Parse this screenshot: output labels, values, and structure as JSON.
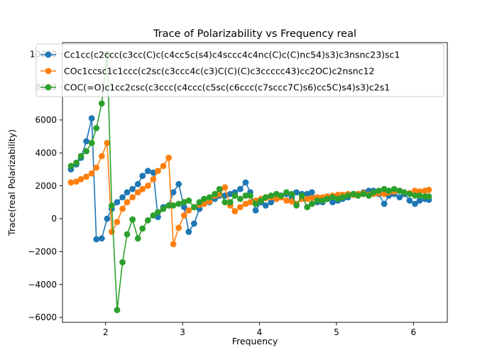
{
  "chart_data": {
    "type": "line",
    "title": "Trace of Polarizability vs Frequency real",
    "xlabel": "Frequency",
    "ylabel": "Trace(real Polarizability)",
    "xlim": [
      1.44,
      6.44
    ],
    "ylim": [
      -6300,
      10700
    ],
    "xticks": [
      2,
      3,
      4,
      5,
      6
    ],
    "yticks": [
      -6000,
      -4000,
      -2000,
      0,
      2000,
      4000,
      6000,
      8000,
      10000
    ],
    "grid": false,
    "legend_position": "top-left",
    "series": [
      {
        "name": "Cc1cc(c2ccc(c3cc(C)c(c4cc5c(s4)c4sccc4c4nc(C)c(C)nc54)s3)c3nsnc23)sc1",
        "color": "#1f77b4",
        "x": [
          1.55,
          1.62,
          1.68,
          1.75,
          1.82,
          1.88,
          1.95,
          2.02,
          2.08,
          2.15,
          2.22,
          2.28,
          2.35,
          2.42,
          2.48,
          2.55,
          2.62,
          2.68,
          2.75,
          2.82,
          2.88,
          2.95,
          3.02,
          3.08,
          3.15,
          3.22,
          3.28,
          3.35,
          3.42,
          3.48,
          3.55,
          3.62,
          3.68,
          3.75,
          3.82,
          3.88,
          3.95,
          4.02,
          4.08,
          4.15,
          4.22,
          4.28,
          4.35,
          4.42,
          4.48,
          4.55,
          4.62,
          4.68,
          4.75,
          4.82,
          4.88,
          4.95,
          5.02,
          5.08,
          5.15,
          5.22,
          5.28,
          5.35,
          5.42,
          5.48,
          5.55,
          5.62,
          5.68,
          5.75,
          5.82,
          5.88,
          5.95,
          6.02,
          6.08,
          6.15,
          6.2
        ],
        "y": [
          3000,
          3300,
          3700,
          4700,
          6100,
          -1250,
          -1200,
          0,
          600,
          1000,
          1300,
          1600,
          1800,
          2100,
          2600,
          2900,
          2800,
          100,
          700,
          800,
          1600,
          2100,
          700,
          -800,
          -300,
          600,
          900,
          1000,
          1200,
          1400,
          1400,
          1500,
          1600,
          1800,
          2200,
          1600,
          500,
          1000,
          800,
          1000,
          1200,
          1400,
          1500,
          1300,
          1600,
          1500,
          1500,
          1600,
          1000,
          1000,
          1200,
          1000,
          1100,
          1200,
          1300,
          1500,
          1500,
          1600,
          1700,
          1700,
          1500,
          900,
          1400,
          1500,
          1300,
          1500,
          1100,
          900,
          1100,
          1200,
          1150
        ]
      },
      {
        "name": "COc1ccsc1c1ccc(c2sc(c3ccc4c(c3)C(C)(C)c3ccccc43)cc2OC)c2nsnc12",
        "color": "#ff7f0e",
        "x": [
          1.55,
          1.62,
          1.68,
          1.75,
          1.82,
          1.88,
          1.95,
          2.02,
          2.08,
          2.15,
          2.22,
          2.28,
          2.35,
          2.42,
          2.48,
          2.55,
          2.62,
          2.68,
          2.75,
          2.82,
          2.88,
          2.95,
          3.02,
          3.08,
          3.15,
          3.22,
          3.28,
          3.35,
          3.42,
          3.48,
          3.55,
          3.62,
          3.68,
          3.75,
          3.82,
          3.88,
          3.95,
          4.02,
          4.08,
          4.15,
          4.22,
          4.28,
          4.35,
          4.42,
          4.48,
          4.55,
          4.62,
          4.68,
          4.75,
          4.82,
          4.88,
          4.95,
          5.02,
          5.08,
          5.15,
          5.22,
          5.28,
          5.35,
          5.42,
          5.48,
          5.55,
          5.62,
          5.68,
          5.75,
          5.82,
          5.88,
          5.95,
          6.02,
          6.08,
          6.15,
          6.2
        ],
        "y": [
          2200,
          2250,
          2400,
          2550,
          2750,
          3100,
          3800,
          4600,
          -800,
          -200,
          600,
          1000,
          1300,
          1600,
          1800,
          2000,
          2400,
          2900,
          3200,
          3700,
          -1550,
          -550,
          200,
          500,
          700,
          850,
          900,
          1050,
          1400,
          1500,
          1900,
          800,
          450,
          700,
          900,
          1000,
          1100,
          1200,
          1250,
          1300,
          1200,
          1300,
          1100,
          1050,
          900,
          1200,
          1200,
          1250,
          1300,
          1300,
          1350,
          1400,
          1450,
          1450,
          1500,
          1450,
          1500,
          1550,
          1450,
          1500,
          1550,
          1500,
          1600,
          1650,
          1700,
          1600,
          1550,
          1700,
          1650,
          1700,
          1750
        ]
      },
      {
        "name": "COC(=O)c1cc2csc(c3ccc(c4ccc(c5sc(c6ccc(c7sccc7C)s6)cc5C)s4)s3)c2s1",
        "color": "#2ca02c",
        "x": [
          1.55,
          1.62,
          1.68,
          1.75,
          1.82,
          1.88,
          1.95,
          2.02,
          2.08,
          2.15,
          2.22,
          2.28,
          2.35,
          2.42,
          2.48,
          2.55,
          2.62,
          2.68,
          2.75,
          2.82,
          2.88,
          2.95,
          3.02,
          3.08,
          3.15,
          3.22,
          3.28,
          3.35,
          3.42,
          3.48,
          3.55,
          3.62,
          3.68,
          3.75,
          3.82,
          3.88,
          3.95,
          4.02,
          4.08,
          4.15,
          4.22,
          4.28,
          4.35,
          4.42,
          4.48,
          4.55,
          4.62,
          4.68,
          4.75,
          4.82,
          4.88,
          4.95,
          5.02,
          5.08,
          5.15,
          5.22,
          5.28,
          5.35,
          5.42,
          5.48,
          5.55,
          5.62,
          5.68,
          5.75,
          5.82,
          5.88,
          5.95,
          6.02,
          6.08,
          6.15,
          6.2
        ],
        "y": [
          3200,
          3400,
          3800,
          4100,
          4600,
          5500,
          7000,
          10000,
          800,
          -5550,
          -2650,
          -950,
          -50,
          -1200,
          -600,
          -100,
          200,
          400,
          600,
          800,
          800,
          900,
          1000,
          1100,
          700,
          1000,
          1200,
          1300,
          1500,
          1800,
          1000,
          1000,
          1400,
          1200,
          1400,
          1400,
          900,
          1100,
          1300,
          1400,
          1500,
          1400,
          1600,
          1500,
          800,
          1400,
          700,
          900,
          1100,
          1100,
          1200,
          1300,
          1200,
          1300,
          1400,
          1500,
          1400,
          1500,
          1400,
          1600,
          1700,
          1800,
          1700,
          1800,
          1700,
          1600,
          1500,
          1400,
          1400,
          1350,
          1350
        ]
      }
    ]
  }
}
